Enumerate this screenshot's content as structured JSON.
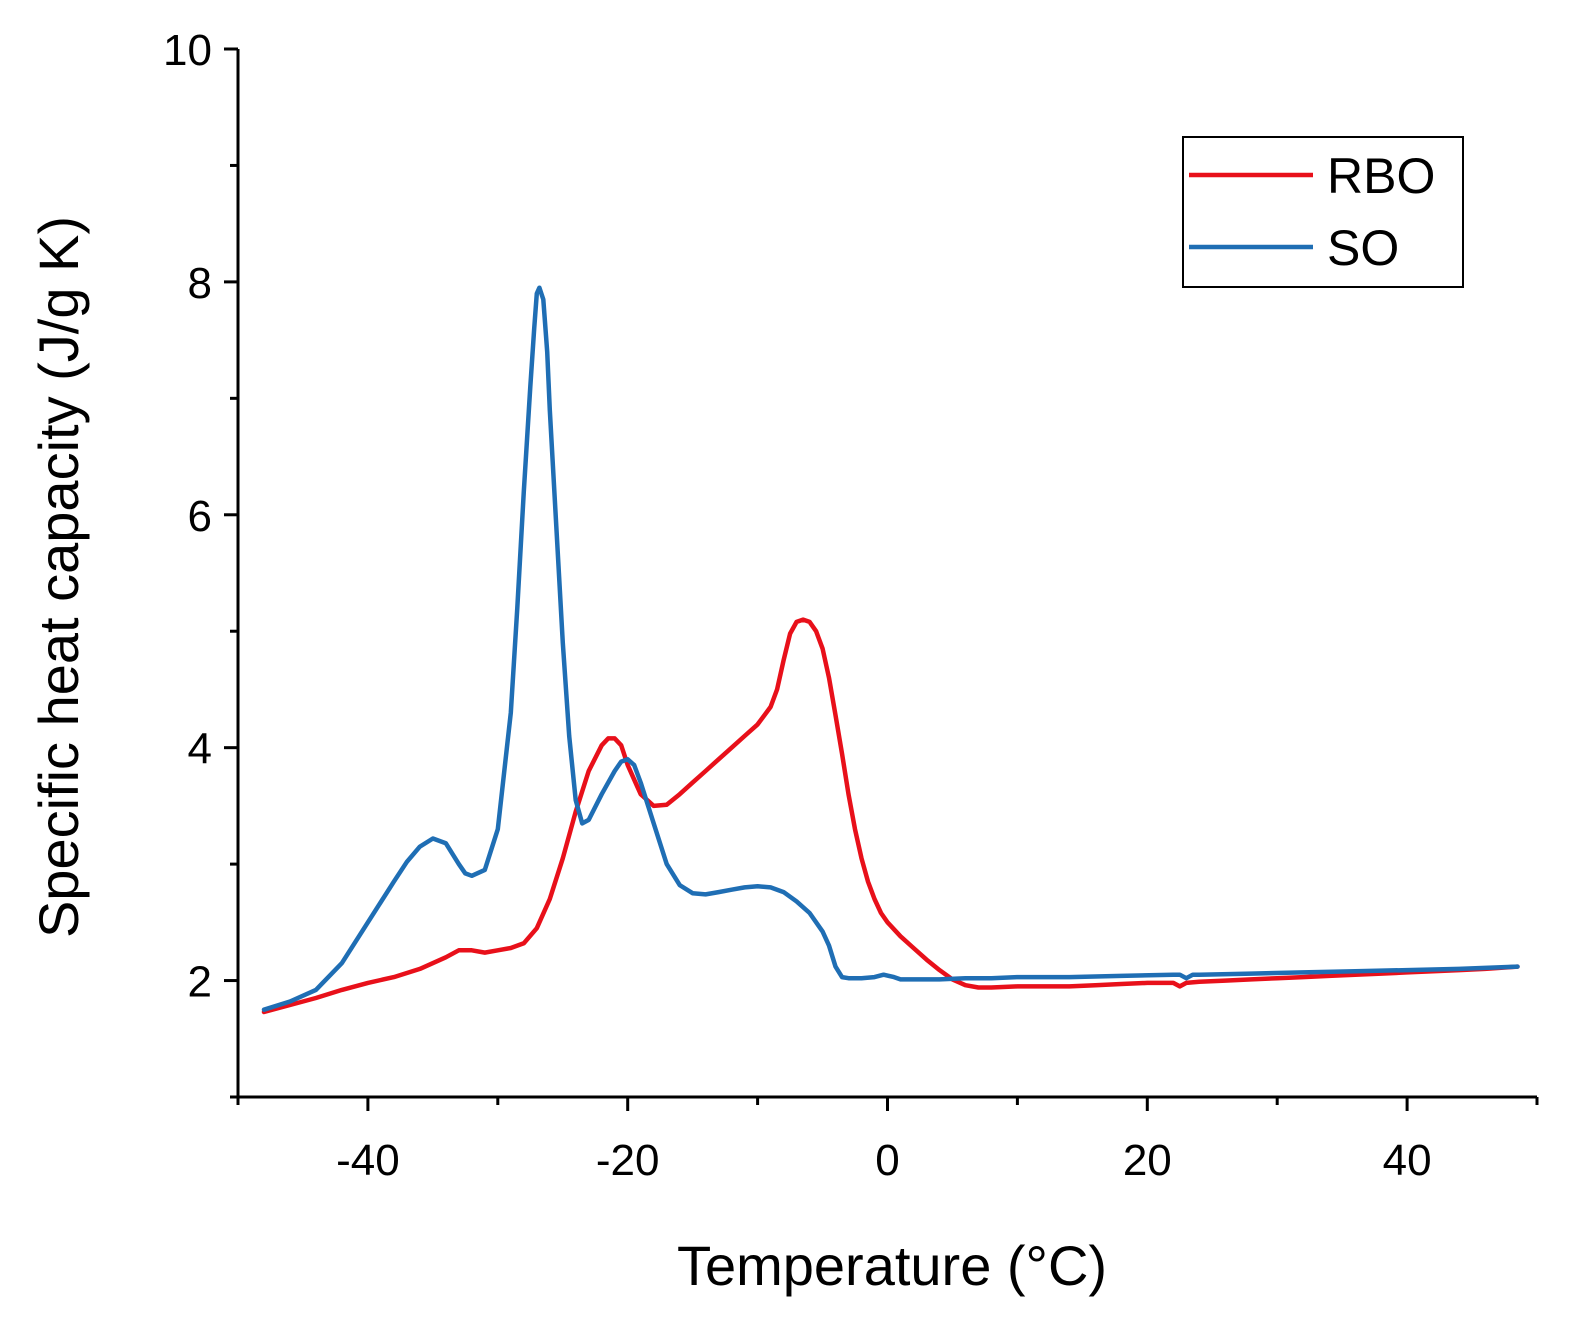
{
  "chart_data": {
    "type": "line",
    "title": "",
    "xlabel": "Temperature (°C)",
    "ylabel": "Specific heat capacity (J/g K)",
    "xlim": [
      -50,
      50
    ],
    "ylim": [
      1,
      10
    ],
    "xticks": [
      -40,
      -20,
      0,
      20,
      40
    ],
    "xtick_labels": [
      "-40",
      "-20",
      "0",
      "20",
      "40"
    ],
    "xminor": [
      -50,
      -30,
      -10,
      10,
      30,
      50
    ],
    "yticks": [
      2,
      4,
      6,
      8,
      10
    ],
    "ytick_labels": [
      "2",
      "4",
      "6",
      "8",
      "10"
    ],
    "yminor": [
      1,
      3,
      5,
      7,
      9
    ],
    "grid": false,
    "legend_position": "top-right",
    "series": [
      {
        "name": "RBO",
        "color": "#e8101a",
        "x": [
          -48,
          -46,
          -44,
          -42,
          -40,
          -38,
          -36,
          -34,
          -33,
          -32,
          -31,
          -30,
          -29,
          -28,
          -27,
          -26,
          -25,
          -24,
          -23,
          -22,
          -21.5,
          -21,
          -20.5,
          -20,
          -19,
          -18,
          -17,
          -16,
          -15,
          -14,
          -13,
          -12,
          -11,
          -10,
          -9,
          -8.5,
          -8,
          -7.5,
          -7,
          -6.5,
          -6,
          -5.5,
          -5,
          -4.5,
          -4,
          -3.5,
          -3,
          -2.5,
          -2,
          -1.5,
          -1,
          -0.5,
          0,
          1,
          2,
          3,
          4,
          5,
          6,
          7,
          8,
          10,
          12,
          14,
          16,
          18,
          20,
          22,
          22.5,
          23,
          24,
          26,
          28,
          30,
          32,
          34,
          36,
          38,
          40,
          42,
          44,
          46,
          48.5
        ],
        "y": [
          1.73,
          1.79,
          1.85,
          1.92,
          1.98,
          2.03,
          2.1,
          2.2,
          2.26,
          2.26,
          2.24,
          2.26,
          2.28,
          2.32,
          2.45,
          2.7,
          3.05,
          3.45,
          3.8,
          4.02,
          4.08,
          4.08,
          4.02,
          3.85,
          3.6,
          3.5,
          3.51,
          3.6,
          3.7,
          3.8,
          3.9,
          4.0,
          4.1,
          4.2,
          4.35,
          4.5,
          4.75,
          4.98,
          5.08,
          5.1,
          5.08,
          5.0,
          4.85,
          4.6,
          4.28,
          3.95,
          3.6,
          3.3,
          3.05,
          2.85,
          2.7,
          2.58,
          2.5,
          2.38,
          2.28,
          2.18,
          2.09,
          2.01,
          1.96,
          1.94,
          1.94,
          1.95,
          1.95,
          1.95,
          1.96,
          1.97,
          1.98,
          1.98,
          1.95,
          1.98,
          1.99,
          2.0,
          2.01,
          2.02,
          2.03,
          2.04,
          2.05,
          2.06,
          2.07,
          2.08,
          2.09,
          2.1,
          2.12
        ]
      },
      {
        "name": "SO",
        "color": "#1f6eb4",
        "x": [
          -48,
          -46,
          -44,
          -42,
          -40,
          -38,
          -37,
          -36,
          -35,
          -34,
          -33,
          -32.5,
          -32,
          -31,
          -30,
          -29,
          -28.5,
          -28,
          -27.5,
          -27.2,
          -27,
          -26.8,
          -26.5,
          -26.2,
          -26,
          -25.5,
          -25,
          -24.5,
          -24,
          -23.5,
          -23,
          -22,
          -21,
          -20.5,
          -20,
          -19.5,
          -19,
          -18,
          -17,
          -16,
          -15,
          -14,
          -13,
          -12,
          -11,
          -10,
          -9,
          -8,
          -7,
          -6,
          -5,
          -4.5,
          -4,
          -3.5,
          -3,
          -2,
          -1,
          -0.3,
          0.5,
          1,
          2,
          4,
          6,
          8,
          10,
          14,
          18,
          22,
          22.5,
          23,
          23.5,
          24,
          28,
          32,
          36,
          40,
          44,
          48.5
        ],
        "y": [
          1.75,
          1.82,
          1.92,
          2.15,
          2.5,
          2.85,
          3.02,
          3.15,
          3.22,
          3.18,
          3.0,
          2.92,
          2.9,
          2.95,
          3.3,
          4.3,
          5.2,
          6.2,
          7.1,
          7.6,
          7.9,
          7.95,
          7.85,
          7.4,
          6.9,
          5.9,
          4.9,
          4.1,
          3.55,
          3.35,
          3.38,
          3.6,
          3.8,
          3.88,
          3.9,
          3.85,
          3.7,
          3.35,
          3.0,
          2.82,
          2.75,
          2.74,
          2.76,
          2.78,
          2.8,
          2.81,
          2.8,
          2.76,
          2.68,
          2.58,
          2.42,
          2.3,
          2.12,
          2.03,
          2.02,
          2.02,
          2.03,
          2.05,
          2.03,
          2.01,
          2.01,
          2.01,
          2.02,
          2.02,
          2.03,
          2.03,
          2.04,
          2.05,
          2.05,
          2.02,
          2.05,
          2.05,
          2.06,
          2.07,
          2.08,
          2.09,
          2.1,
          2.12
        ]
      }
    ]
  }
}
